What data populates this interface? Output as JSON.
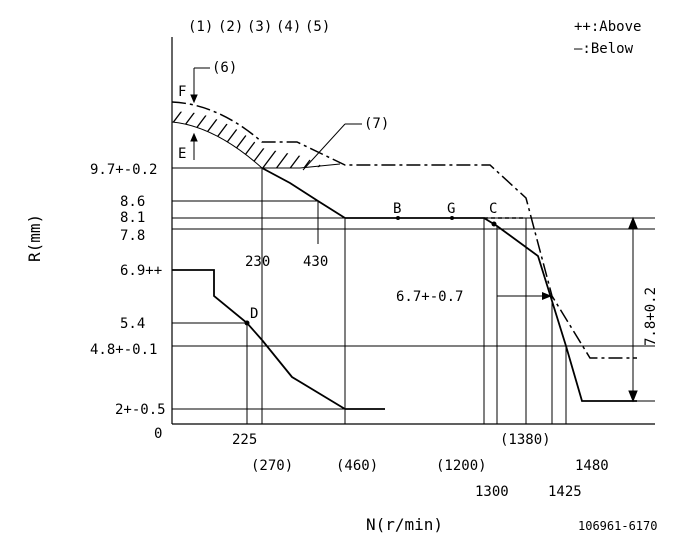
{
  "legend": {
    "above": "++:Above",
    "below": "—:Below"
  },
  "axis": {
    "x_title": "N(r/min)",
    "y_title": "R(mm)",
    "origin": "0"
  },
  "header_labels": [
    "(1)",
    "(2)",
    "(3)",
    "(4)",
    "(5)"
  ],
  "callouts": {
    "c6": "(6)",
    "c7": "(7)",
    "F": "F",
    "E": "E"
  },
  "y_labels": {
    "y97": "9.7+-0.2",
    "y86": "8.6",
    "y81": "8.1",
    "y78": "7.8",
    "y69": "6.9++",
    "y54": "5.4",
    "y48": "4.8+-0.1",
    "y2": "2+-0.5"
  },
  "x_labels_upper": {
    "x230": "230",
    "x430": "430"
  },
  "x_labels_lower": {
    "x225": "225",
    "x270": "(270)",
    "x460": "(460)",
    "x1200": "(1200)",
    "x1300": "1300",
    "x1380": "(1380)",
    "x1425": "1425",
    "x1480": "1480"
  },
  "points": {
    "B": "B",
    "G": "G",
    "C": "C",
    "D": "D"
  },
  "annotations": {
    "mid": "6.7+-0.7",
    "right": "7.8+0.2"
  },
  "part_number": "106961-6170"
}
